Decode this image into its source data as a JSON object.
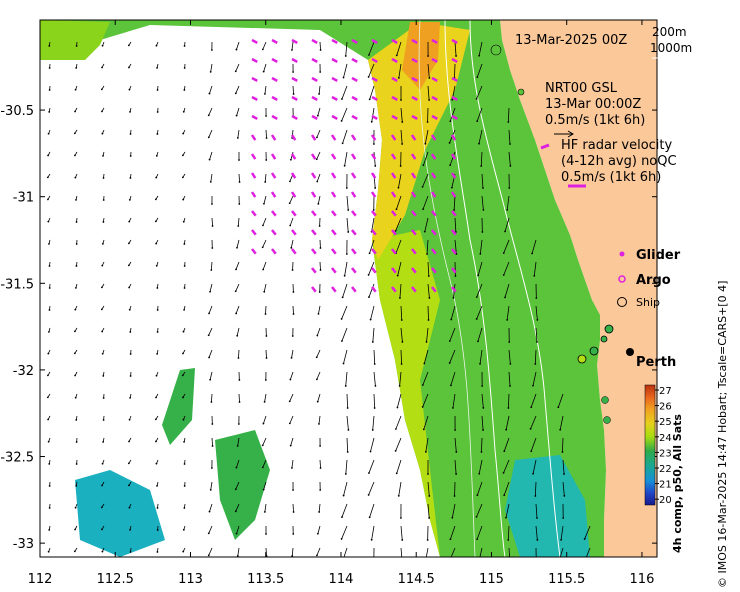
{
  "title_time": "13-Mar-2025 00Z",
  "depth_legend": [
    "200m",
    "1000m"
  ],
  "model_legend": {
    "line1": "NRT00 GSL",
    "line2": "13-Mar 00:00Z",
    "line3": "0.5m/s (1kt 6h)"
  },
  "hf_legend": {
    "line1": "HF radar velocity",
    "line2": "(4-12h avg) noQC",
    "line3": "0.5m/s (1kt 6h)"
  },
  "platform_legend": {
    "glider": "Glider",
    "argo": "Argo",
    "ship": "Ship"
  },
  "city_label": "Perth",
  "colorbar": {
    "title": "4h comp, p50, All Sats",
    "ticks": [
      "27",
      "26",
      "25",
      "24",
      "23",
      "22",
      "21",
      "20"
    ],
    "colors": [
      "#b8320f",
      "#e8641d",
      "#f0a020",
      "#e6d01c",
      "#a8dc10",
      "#2faa4a",
      "#1aa890",
      "#1890d8",
      "#1f46c8",
      "#181a8c"
    ]
  },
  "credit": "© IMOS 16-Mar-2025 14:47 Hobart; Tscale=CARS+[0 4]",
  "axes": {
    "x_ticks": [
      "112",
      "112.5",
      "113",
      "113.5",
      "114",
      "114.5",
      "115",
      "115.5",
      "116"
    ],
    "y_ticks": [
      "-30.5",
      "-31",
      "-31.5",
      "-32",
      "-32.5",
      "-33"
    ],
    "x_range": [
      112,
      116.1
    ],
    "y_range": [
      -33.08,
      -29.98
    ]
  },
  "colors": {
    "land": "#fbc89a",
    "hf_arrow": "#e020e0",
    "model_arrow": "#000000",
    "bathy_contour": "#ffffff"
  }
}
